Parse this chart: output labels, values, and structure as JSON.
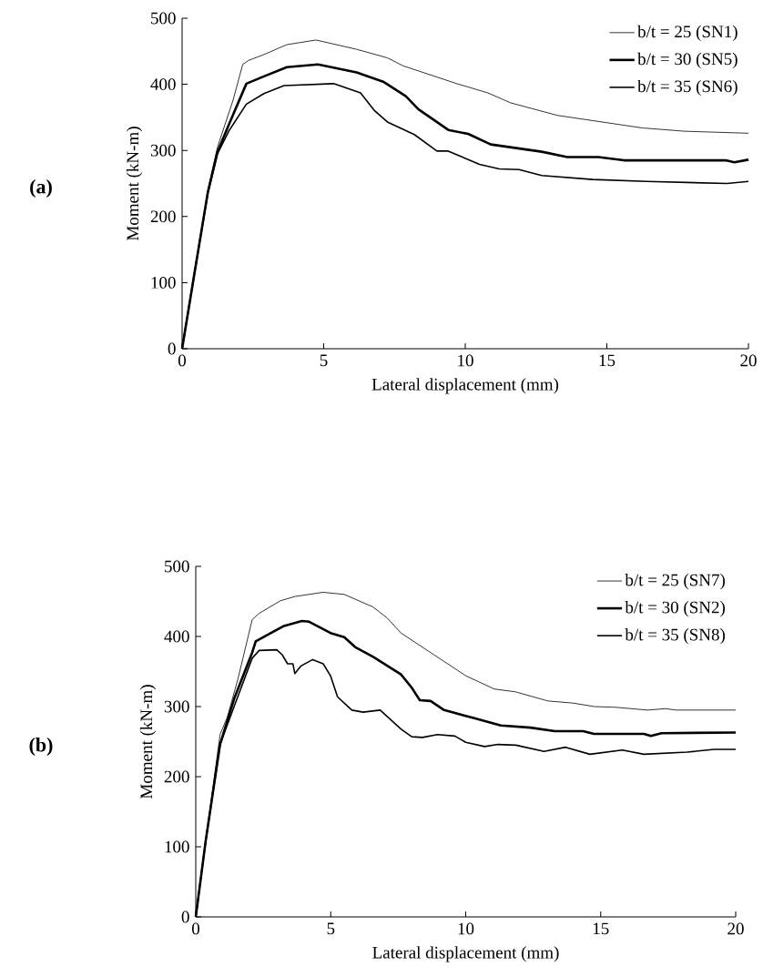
{
  "chart_data": [
    {
      "type": "line",
      "xlabel": "Lateral displacement (mm)",
      "ylabel": "Moment (kN-m)",
      "annotations": [
        "(a)"
      ],
      "xlim": [
        0,
        20
      ],
      "ylim": [
        0,
        500
      ],
      "xticks": [
        0,
        5,
        10,
        15,
        20
      ],
      "yticks": [
        0,
        100,
        200,
        300,
        400,
        500
      ],
      "legend": "top right",
      "grid": false,
      "series": [
        {
          "name": "b/t = 25 (SN1)",
          "color": "#000000",
          "x": [
            0,
            0.44,
            0.91,
            1.25,
            1.8,
            2.14,
            2.34,
            2.89,
            3.7,
            4.73,
            6.16,
            7.25,
            7.8,
            9.7,
            10.8,
            11.6,
            13.25,
            16.25,
            17.75,
            20
          ],
          "values": [
            0,
            115,
            240,
            305,
            376,
            430,
            436,
            445,
            460,
            467,
            453,
            440,
            428,
            401,
            387,
            372,
            353,
            334,
            329,
            326
          ]
        },
        {
          "name": "b/t = 30 (SN5)",
          "color": "#000000",
          "x": [
            0,
            0.44,
            0.91,
            1.25,
            1.66,
            2.27,
            2.89,
            3.7,
            4.8,
            6.16,
            7.1,
            7.9,
            8.35,
            9.4,
            10.1,
            10.9,
            12.7,
            13.6,
            14.7,
            15.6,
            19.2,
            19.5,
            20
          ],
          "values": [
            0,
            115,
            237,
            298,
            340,
            401,
            412,
            426,
            430,
            418,
            404,
            382,
            362,
            331,
            325,
            309,
            298,
            290,
            290,
            285,
            285,
            282,
            286
          ]
        },
        {
          "name": "b/t = 35 (SN6)",
          "color": "#000000",
          "x": [
            0,
            0.44,
            0.91,
            1.25,
            1.66,
            2.27,
            2.89,
            3.6,
            5.35,
            6.3,
            6.8,
            7.25,
            8.2,
            9.0,
            9.4,
            10.5,
            11.2,
            11.9,
            12.7,
            14.5,
            16.4,
            19.25,
            20
          ],
          "values": [
            0,
            115,
            235,
            295,
            330,
            370,
            386,
            398,
            401,
            387,
            360,
            343,
            324,
            299,
            299,
            279,
            272,
            271,
            262,
            256,
            253,
            250,
            253
          ]
        }
      ]
    },
    {
      "type": "line",
      "xlabel": "Lateral displacement (mm)",
      "ylabel": "Moment (kN-m)",
      "annotations": [
        "(b)"
      ],
      "xlim": [
        0,
        20
      ],
      "ylim": [
        0,
        500
      ],
      "xticks": [
        0,
        5,
        10,
        15,
        20
      ],
      "yticks": [
        0,
        100,
        200,
        300,
        400,
        500
      ],
      "legend": "top right",
      "grid": false,
      "series": [
        {
          "name": "b/t = 25 (SN7)",
          "color": "#000000",
          "x": [
            0,
            0.37,
            0.9,
            1.16,
            1.56,
            2.09,
            2.35,
            3.14,
            3.67,
            4.72,
            5.5,
            6.57,
            7.1,
            7.6,
            8.7,
            10.0,
            11.06,
            11.85,
            13.04,
            13.97,
            14.76,
            15.55,
            16.73,
            17.4,
            17.8,
            20
          ],
          "values": [
            0,
            109,
            260,
            284,
            339,
            424,
            433,
            451,
            457,
            463,
            460,
            442,
            426,
            405,
            377,
            344,
            325,
            321,
            308,
            305,
            300,
            299,
            295,
            297,
            295,
            295
          ]
        },
        {
          "name": "b/t = 30 (SN2)",
          "color": "#000000",
          "x": [
            0,
            0.37,
            0.9,
            1.42,
            2.09,
            2.22,
            2.88,
            3.27,
            3.93,
            4.2,
            4.99,
            5.5,
            5.9,
            6.57,
            7.6,
            8.0,
            8.3,
            8.7,
            9.2,
            10.26,
            11.3,
            12.4,
            13.3,
            14.35,
            14.75,
            16.6,
            16.86,
            17.25,
            20
          ],
          "values": [
            0,
            109,
            246,
            311,
            377,
            393,
            407,
            415,
            422,
            421,
            405,
            399,
            385,
            371,
            346,
            327,
            309,
            308,
            295,
            284,
            273,
            270,
            265,
            265,
            261,
            261,
            258,
            262,
            263
          ]
        },
        {
          "name": "b/t = 35 (SN8)",
          "color": "#000000",
          "x": [
            0,
            0.37,
            0.9,
            1.42,
            2.09,
            2.35,
            3.0,
            3.2,
            3.4,
            3.6,
            3.67,
            3.9,
            4.33,
            4.72,
            4.99,
            5.25,
            5.78,
            6.2,
            6.83,
            7.6,
            8.0,
            8.4,
            8.95,
            9.6,
            10.0,
            10.7,
            11.2,
            11.86,
            12.9,
            13.7,
            14.6,
            15.8,
            16.6,
            18.2,
            19.2,
            20
          ],
          "values": [
            0,
            109,
            246,
            300,
            369,
            380,
            381,
            374,
            361,
            361,
            347,
            358,
            367,
            361,
            344,
            314,
            295,
            292,
            295,
            268,
            257,
            256,
            260,
            258,
            249,
            243,
            246,
            245,
            236,
            242,
            232,
            238,
            232,
            235,
            239,
            239
          ]
        }
      ]
    }
  ]
}
